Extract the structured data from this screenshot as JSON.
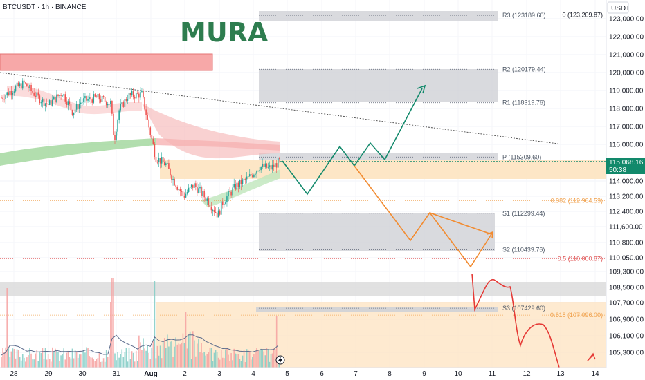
{
  "header": {
    "symbol": "BTCUSDT · 1h · BINANCE",
    "currency": "USDT"
  },
  "logo_text": "MURA",
  "chart_data": {
    "type": "candlestick",
    "ylim": [
      104600,
      123600
    ],
    "price_ticks": [
      "123,000.00",
      "122,000.00",
      "121,000.00",
      "120,000.00",
      "119,000.00",
      "118,000.00",
      "117,000.00",
      "116,000.00",
      "114,000.00",
      "113,200.00",
      "112,400.00",
      "111,600.00",
      "110,800.00",
      "110,050.00",
      "109,300.00",
      "108,500.00",
      "107,700.00",
      "106,900.00",
      "106,100.00",
      "105,300.00"
    ],
    "price_tick_values": [
      123000,
      122000,
      121000,
      120000,
      119000,
      118000,
      117000,
      116000,
      114000,
      113200,
      112400,
      111600,
      110800,
      110050,
      109300,
      108500,
      107700,
      106900,
      106100,
      105300
    ],
    "date_ticks": [
      "28",
      "29",
      "30",
      "31",
      "Aug",
      "2",
      "3",
      "4",
      "5",
      "6",
      "7",
      "8",
      "9",
      "10",
      "11",
      "12",
      "13",
      "14"
    ],
    "last_price": {
      "value": 115068.16,
      "label": "115,068.16",
      "countdown": "50:38"
    },
    "levels": [
      {
        "name": "R3",
        "label": "R3 (123189.60)",
        "value": 123189.6
      },
      {
        "name": "R2",
        "label": "R2 (120179.44)",
        "value": 120179.44
      },
      {
        "name": "R1",
        "label": "R1 (118319.76)",
        "value": 118319.76
      },
      {
        "name": "P",
        "label": "P (115309.60)",
        "value": 115309.6
      },
      {
        "name": "S1",
        "label": "S1 (112299.44)",
        "value": 112299.44
      },
      {
        "name": "S2",
        "label": "S2 (110439.76)",
        "value": 110439.76
      },
      {
        "name": "S3",
        "label": "S3 (107429.60)",
        "value": 107429.6
      }
    ],
    "fib_levels": [
      {
        "label": "0 (123,209.87)",
        "value": 123209.87,
        "color": "#131722"
      },
      {
        "label": "0.382 (112,964.53)",
        "value": 112964.53,
        "color": "#f0a04b"
      },
      {
        "label": "0.5 (110,000.87)",
        "value": 110000.87,
        "color": "#e05252"
      },
      {
        "label": "0.618 (107,096.00)",
        "value": 107096.0,
        "color": "#f0a04b"
      }
    ],
    "colors": {
      "up": "#26a69a",
      "down": "#ef5350",
      "bull_path": "#12896b",
      "bear_path": "#f28b30",
      "crash_path": "#e53935"
    }
  }
}
